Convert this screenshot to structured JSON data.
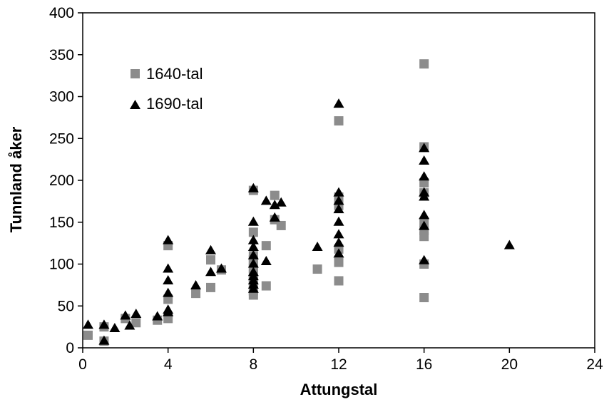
{
  "chart_data": {
    "type": "scatter",
    "xlabel": "Attungstal",
    "ylabel": "Tunnland åker",
    "xlim": [
      0,
      24
    ],
    "ylim": [
      0,
      400
    ],
    "x_ticks": [
      0,
      4,
      8,
      12,
      16,
      20,
      24
    ],
    "y_ticks": [
      0,
      50,
      100,
      150,
      200,
      250,
      300,
      350,
      400
    ],
    "grid": false,
    "legend_position": "upper-left",
    "series": [
      {
        "name": "1640-tal",
        "marker": "square",
        "color": "#8c8c8c",
        "points": [
          [
            0.25,
            15
          ],
          [
            1,
            8
          ],
          [
            1,
            25
          ],
          [
            2,
            35
          ],
          [
            2.5,
            30
          ],
          [
            3.5,
            33
          ],
          [
            4,
            35
          ],
          [
            4,
            58
          ],
          [
            4,
            122
          ],
          [
            5.3,
            65
          ],
          [
            6,
            72
          ],
          [
            6,
            105
          ],
          [
            6.5,
            93
          ],
          [
            8,
            63
          ],
          [
            8,
            68
          ],
          [
            8,
            78
          ],
          [
            8,
            82
          ],
          [
            8,
            88
          ],
          [
            8,
            95
          ],
          [
            8,
            100
          ],
          [
            8,
            105
          ],
          [
            8,
            110
          ],
          [
            8,
            138
          ],
          [
            8,
            188
          ],
          [
            8.6,
            74
          ],
          [
            8.6,
            122
          ],
          [
            9,
            153
          ],
          [
            9,
            182
          ],
          [
            9.3,
            146
          ],
          [
            11,
            94
          ],
          [
            12,
            80
          ],
          [
            12,
            102
          ],
          [
            12,
            118
          ],
          [
            12,
            170
          ],
          [
            12,
            180
          ],
          [
            12,
            271
          ],
          [
            16,
            60
          ],
          [
            16,
            100
          ],
          [
            16,
            133
          ],
          [
            16,
            140
          ],
          [
            16,
            150
          ],
          [
            16,
            185
          ],
          [
            16,
            197
          ],
          [
            16,
            240
          ],
          [
            16,
            339
          ]
        ]
      },
      {
        "name": "1690-tal",
        "marker": "triangle",
        "color": "#000000",
        "points": [
          [
            0.25,
            27
          ],
          [
            1,
            8
          ],
          [
            1,
            27
          ],
          [
            1.5,
            23
          ],
          [
            2,
            38
          ],
          [
            2.2,
            26
          ],
          [
            2.5,
            40
          ],
          [
            3.5,
            37
          ],
          [
            4,
            42
          ],
          [
            4,
            45
          ],
          [
            4,
            65
          ],
          [
            4,
            80
          ],
          [
            4,
            94
          ],
          [
            4,
            128
          ],
          [
            5.3,
            74
          ],
          [
            6,
            90
          ],
          [
            6,
            116
          ],
          [
            6.5,
            94
          ],
          [
            8,
            70
          ],
          [
            8,
            75
          ],
          [
            8,
            80
          ],
          [
            8,
            85
          ],
          [
            8,
            90
          ],
          [
            8,
            100
          ],
          [
            8,
            110
          ],
          [
            8,
            120
          ],
          [
            8,
            128
          ],
          [
            8,
            150
          ],
          [
            8,
            190
          ],
          [
            8.6,
            103
          ],
          [
            8.6,
            175
          ],
          [
            9,
            155
          ],
          [
            9,
            170
          ],
          [
            9.3,
            173
          ],
          [
            11,
            120
          ],
          [
            12,
            112
          ],
          [
            12,
            125
          ],
          [
            12,
            135
          ],
          [
            12,
            150
          ],
          [
            12,
            165
          ],
          [
            12,
            175
          ],
          [
            12,
            185
          ],
          [
            12,
            291
          ],
          [
            16,
            104
          ],
          [
            16,
            145
          ],
          [
            16,
            158
          ],
          [
            16,
            180
          ],
          [
            16,
            185
          ],
          [
            16,
            204
          ],
          [
            16,
            223
          ],
          [
            16,
            238
          ],
          [
            20,
            122
          ]
        ]
      }
    ]
  },
  "colors": {
    "background": "#ffffff",
    "axis": "#000000"
  }
}
